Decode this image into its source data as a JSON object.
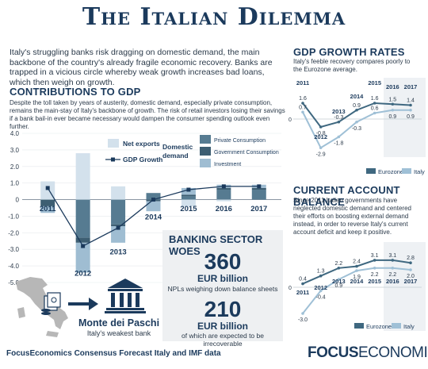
{
  "title": "The Italian Dilemma",
  "intro": "Italy's struggling banks risk dragging on domestic demand, the main backbone of the country's already fragile economic recovery. Banks are trapped in a vicious circle whereby weak growth increases bad loans, which then weigh on growth.",
  "contrib": {
    "title": "CONTRIBUTIONS TO GDP",
    "subtitle": "Despite the toll taken by years of austerity, domestic demand, especially private consumption, remains the main-stay of Italy's backbone of growth. The risk of retail investors losing their savings if a bank bail-in ever became necessary would dampen the consumer spending outlook even further.",
    "legend_net_exports": "Net exports",
    "legend_gdp": "GDP Growth",
    "legend_domestic": "Domestic demand",
    "legend_private": "Private Consumption",
    "legend_government": "Government Consumption",
    "legend_investment": "Investment"
  },
  "banking": {
    "title": "BANKING SECTOR WOES",
    "v1": "360",
    "u1": "EUR billion",
    "d1": "NPLs weighing down balance sheets",
    "v2": "210",
    "u2": "EUR billion",
    "d2": "of which are expected to be irrecoverable"
  },
  "bank": {
    "name": "Monte dei Paschi",
    "desc": "Italy's weakest bank"
  },
  "gdp_rates": {
    "title": "GDP GROWTH RATES",
    "subtitle": "Italy's feeble recovery compares poorly to the Eurozone average.",
    "legend_eurozone": "Eurozone",
    "legend_italy": "Italy"
  },
  "cab": {
    "title": "CURRENT ACCOUNT BALANCE",
    "subtitle": "Since 2011 Italian governments have neglected domestic demand and centered their efforts on boosting external demand instead, in order to reverse Italy's current account deficit and keep it positive.",
    "legend_eurozone": "Eurozone",
    "legend_italy": "Italy"
  },
  "footer": "FocusEconomics Consensus Forecast Italy and IMF data",
  "brand_bold": "FOCUS",
  "brand_thin": "ECONOMICS",
  "colors": {
    "navy": "#1b3a5c",
    "private": "#567b91",
    "government": "#3d5e72",
    "investment": "#9fbdd2",
    "net_exports": "#d3e1ec",
    "gdp_line": "#1b3a5c",
    "italy": "#9fc0d6",
    "eurozone": "#3f6880"
  },
  "chart_data": [
    {
      "type": "bar",
      "categories": [
        "2011",
        "2012",
        "2013",
        "2014",
        "2015",
        "2016",
        "2017"
      ],
      "yticks": [
        "4.0",
        "3.0",
        "2.0",
        "1.0",
        "0",
        "-1.0",
        "-2.0",
        "-3.0",
        "-4.0",
        "-5.0"
      ],
      "ylim": [
        -5,
        4
      ],
      "series": [
        {
          "name": "Private Consumption",
          "values": [
            0.0,
            -2.3,
            -1.5,
            0.4,
            0.2,
            0.6,
            0.6
          ]
        },
        {
          "name": "Government Consumption",
          "values": [
            -0.4,
            -0.3,
            -0.1,
            -0.1,
            0.1,
            0.1,
            0.1
          ]
        },
        {
          "name": "Investment",
          "values": [
            -0.4,
            -1.8,
            -1.0,
            -0.6,
            0.4,
            0.2,
            0.2
          ]
        },
        {
          "name": "Net exports",
          "values": [
            1.1,
            2.8,
            0.8,
            0.0,
            -0.4,
            -0.1,
            0.0
          ]
        },
        {
          "name": "GDP Growth",
          "values": [
            0.7,
            -2.8,
            -1.7,
            0.0,
            0.6,
            0.8,
            0.8
          ]
        }
      ]
    },
    {
      "type": "line",
      "categories": [
        "2011",
        "2012",
        "2013",
        "2014",
        "2015",
        "2016",
        "2017"
      ],
      "series": [
        {
          "name": "Eurozone",
          "values": [
            1.6,
            -0.8,
            -0.3,
            0.9,
            1.6,
            1.5,
            1.4
          ]
        },
        {
          "name": "Italy",
          "values": [
            0.7,
            -2.9,
            -1.8,
            -0.3,
            0.6,
            0.9,
            0.9
          ]
        }
      ],
      "labels": {
        "Eurozone": [
          "1.6",
          "-0.8",
          "-0.3",
          "0.9",
          "1.6",
          "1.5",
          "1.4"
        ],
        "Italy": [
          "0.7",
          "-2.9",
          "-1.8",
          "-0.3",
          "0.6",
          "0.9",
          "0.9"
        ]
      }
    },
    {
      "type": "line",
      "categories": [
        "2011",
        "2012",
        "2013",
        "2014",
        "2015",
        "2016",
        "2017"
      ],
      "series": [
        {
          "name": "Eurozone",
          "values": [
            0.4,
            1.3,
            2.2,
            2.4,
            3.1,
            3.1,
            2.8
          ]
        },
        {
          "name": "Italy",
          "values": [
            -3.0,
            -0.4,
            0.9,
            1.9,
            2.2,
            2.2,
            2.0
          ]
        }
      ],
      "labels": {
        "Eurozone": [
          "0.4",
          "1.3",
          "2.2",
          "2.4",
          "3.1",
          "3.1",
          "2.8"
        ],
        "Italy": [
          "-3.0",
          "-0.4",
          "0.9",
          "1.9",
          "2.2",
          "2.2",
          "2.0"
        ]
      }
    }
  ]
}
